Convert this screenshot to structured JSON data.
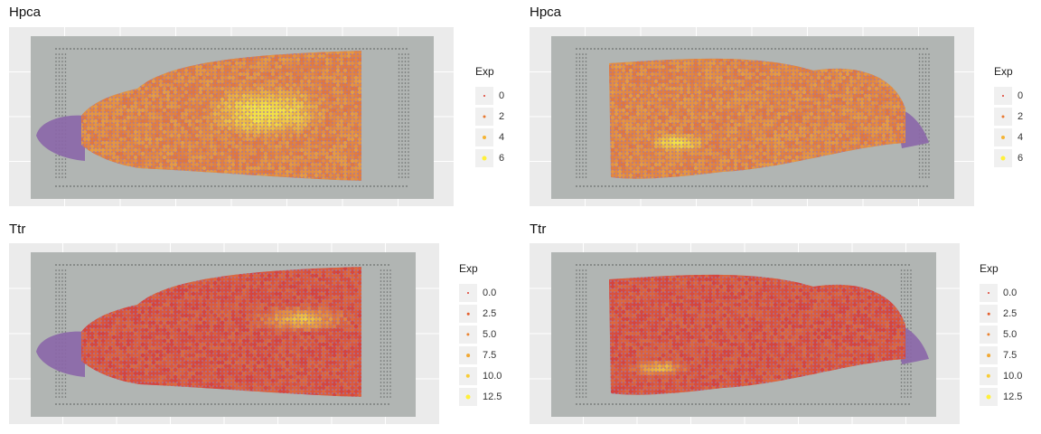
{
  "chart_data": [
    {
      "type": "scatter",
      "title": "Hpca",
      "legend": {
        "title": "Exp",
        "position": "right",
        "breaks": [
          "0",
          "2",
          "4",
          "6"
        ]
      },
      "grid": true,
      "colors": {
        "low": "#dd3c2c",
        "high": "#fff03a"
      },
      "description_note_free": true
    },
    {
      "type": "scatter",
      "title": "Hpca",
      "legend": {
        "title": "Exp",
        "position": "right",
        "breaks": [
          "0",
          "2",
          "4",
          "6"
        ]
      },
      "grid": true,
      "colors": {
        "low": "#dd3c2c",
        "high": "#fff03a"
      }
    },
    {
      "type": "scatter",
      "title": "Ttr",
      "legend": {
        "title": "Exp",
        "position": "right",
        "breaks": [
          "0.0",
          "2.5",
          "5.0",
          "7.5",
          "10.0",
          "12.5"
        ]
      },
      "grid": true,
      "colors": {
        "low": "#dd3c2c",
        "high": "#fff03a"
      }
    },
    {
      "type": "scatter",
      "title": "Ttr",
      "legend": {
        "title": "Exp",
        "position": "right",
        "breaks": [
          "0.0",
          "2.5",
          "5.0",
          "7.5",
          "10.0",
          "12.5"
        ]
      },
      "grid": true,
      "colors": {
        "low": "#dd3c2c",
        "high": "#fff03a"
      }
    }
  ]
}
